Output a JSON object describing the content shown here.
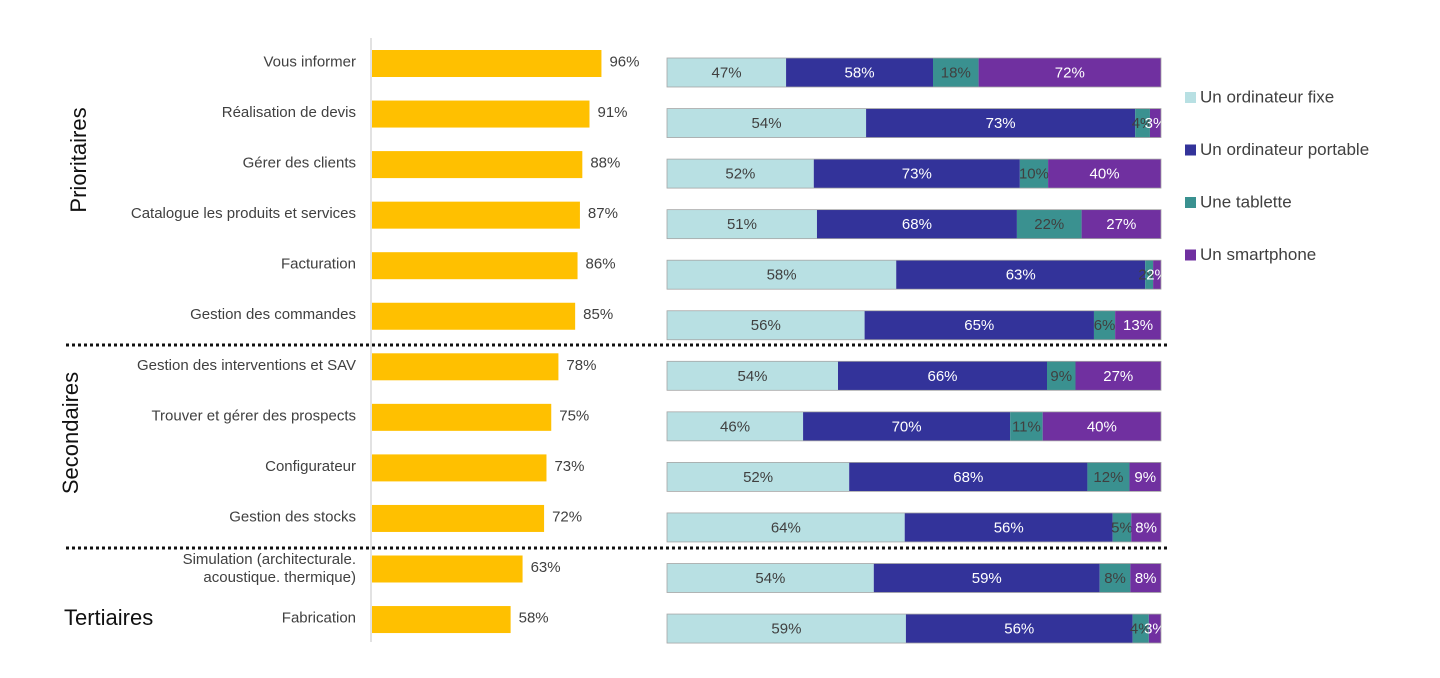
{
  "chart_data": {
    "type": "bar",
    "groups": [
      {
        "label": "Prioritaires",
        "count": 6
      },
      {
        "label": "Secondaires",
        "count": 4
      },
      {
        "label": "Tertiaires",
        "count": 2
      }
    ],
    "categories": [
      "Vous informer",
      "Réalisation de devis",
      "Gérer des clients",
      "Catalogue les produits et services",
      "Facturation",
      "Gestion des commandes",
      "Gestion des interventions et SAV",
      "Trouver et gérer des prospects",
      "Configurateur",
      "Gestion des stocks",
      "Simulation (architecturale. acoustique. thermique)",
      "Fabrication"
    ],
    "overall": {
      "values": [
        96,
        91,
        88,
        87,
        86,
        85,
        78,
        75,
        73,
        72,
        63,
        58
      ],
      "labels": [
        "96%",
        "91%",
        "88%",
        "87%",
        "86%",
        "85%",
        "78%",
        "75%",
        "73%",
        "72%",
        "63%",
        "58%"
      ],
      "color": "#FFC000",
      "xlim": [
        0,
        100
      ]
    },
    "series": [
      {
        "name": "Un ordinateur fixe",
        "color": "#B8E0E3",
        "text_color": "#404040",
        "values": [
          47,
          54,
          52,
          51,
          58,
          56,
          54,
          46,
          52,
          64,
          54,
          59
        ],
        "labels": [
          "47%",
          "54%",
          "52%",
          "51%",
          "58%",
          "56%",
          "54%",
          "46%",
          "52%",
          "64%",
          "54%",
          "59%"
        ]
      },
      {
        "name": "Un ordinateur portable",
        "color": "#33339A",
        "text_color": "#ffffff",
        "values": [
          58,
          73,
          73,
          68,
          63,
          65,
          66,
          70,
          68,
          56,
          59,
          56
        ],
        "labels": [
          "58%",
          "73%",
          "73%",
          "68%",
          "63%",
          "65%",
          "66%",
          "70%",
          "68%",
          "56%",
          "59%",
          "56%"
        ]
      },
      {
        "name": "Une tablette",
        "color": "#3A9190",
        "text_color": "#404040",
        "values": [
          18,
          4,
          10,
          22,
          2,
          6,
          9,
          11,
          12,
          5,
          8,
          4
        ],
        "labels": [
          "18%",
          "4%",
          "10%",
          "22%",
          "2%",
          "6%",
          "9%",
          "11%",
          "12%",
          "5%",
          "8%",
          "4%"
        ]
      },
      {
        "name": "Un smartphone",
        "color": "#7030A0",
        "text_color": "#ffffff",
        "values": [
          72,
          3,
          40,
          27,
          2,
          13,
          27,
          40,
          9,
          8,
          8,
          3
        ],
        "labels": [
          "72%",
          "3%",
          "40%",
          "27%",
          "2%",
          "13%",
          "27%",
          "40%",
          "9%",
          "8%",
          "8%",
          "3%"
        ]
      }
    ],
    "stacked_normalized": true,
    "legend_position": "right",
    "grid": false
  }
}
